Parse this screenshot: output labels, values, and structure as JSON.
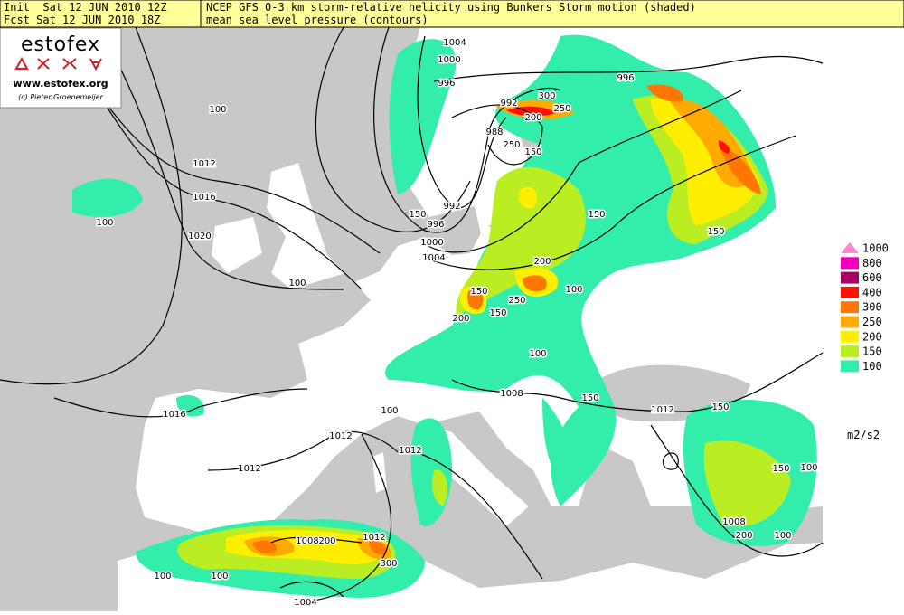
{
  "header": {
    "init": "Init  Sat 12 JUN 2010 12Z",
    "forecast": "Fcst Sat 12 JUN 2010 18Z",
    "title": "NCEP GFS 0-3 km storm-relative helicity using Bunkers Storm motion (shaded)",
    "subtitle": "mean sea level pressure (contours)"
  },
  "logo": {
    "name": "estofex",
    "url": "www.estofex.org",
    "credit": "(c) Pieter Groenemeijer"
  },
  "legend": {
    "unit": "m2/s2",
    "levels": [
      {
        "label": "1000",
        "color": "#ff88cc"
      },
      {
        "label": "800",
        "color": "#ee00bb"
      },
      {
        "label": "600",
        "color": "#aa0066"
      },
      {
        "label": "400",
        "color": "#ff1100"
      },
      {
        "label": "300",
        "color": "#ff7700"
      },
      {
        "label": "250",
        "color": "#ffaa00"
      },
      {
        "label": "200",
        "color": "#ffee00"
      },
      {
        "label": "150",
        "color": "#bbee22"
      },
      {
        "label": "100",
        "color": "#33eeaa"
      }
    ]
  },
  "contour_labels": [
    "1004",
    "1000",
    "996",
    "992",
    "988",
    "992",
    "996",
    "1000",
    "1004",
    "1012",
    "1016",
    "1020",
    "996",
    "1016",
    "1012",
    "1012",
    "1012",
    "1008",
    "1012",
    "1008",
    "1008",
    "1012",
    "1004"
  ],
  "shading_labels": [
    "100",
    "100",
    "150",
    "100",
    "200",
    "150",
    "250",
    "150",
    "200",
    "150",
    "150",
    "250",
    "300",
    "200",
    "250",
    "150",
    "100",
    "150",
    "100",
    "100",
    "200",
    "100",
    "150",
    "100",
    "300",
    "200",
    "100",
    "150",
    "100"
  ]
}
